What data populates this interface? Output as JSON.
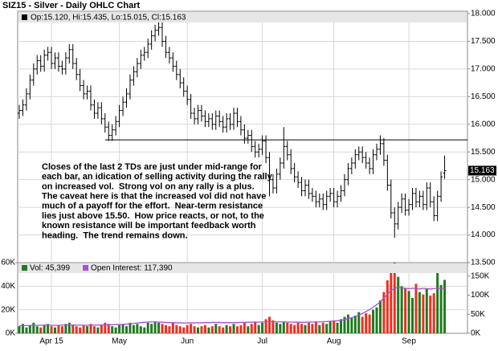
{
  "chart_data": [
    {
      "type": "ohlc",
      "title": "SIZ15 - Silver - Daily OHLC Chart",
      "legend_text": "Op:15.120, Hi:15.435, Lo:15.015, Cl:15.163",
      "color": "#000000",
      "open": [
        16.2,
        16.25,
        16.35,
        16.55,
        16.8,
        17.0,
        17.15,
        17.05,
        17.25,
        17.3,
        17.1,
        17.2,
        17.05,
        17.0,
        17.2,
        17.35,
        17.1,
        16.9,
        16.7,
        16.55,
        16.6,
        16.35,
        16.2,
        16.3,
        16.1,
        15.95,
        15.8,
        15.9,
        16.05,
        16.25,
        16.4,
        16.55,
        16.8,
        16.95,
        17.1,
        17.25,
        17.3,
        17.45,
        17.6,
        17.7,
        17.75,
        17.5,
        17.3,
        17.2,
        17.05,
        16.9,
        16.75,
        16.6,
        16.45,
        16.2,
        16.1,
        16.25,
        16.15,
        16.05,
        16.1,
        16.0,
        16.15,
        16.05,
        15.95,
        16.1,
        16.0,
        16.2,
        16.05,
        15.9,
        15.75,
        15.8,
        15.6,
        15.5,
        15.55,
        15.7,
        15.4,
        15.0,
        14.85,
        15.1,
        15.3,
        15.6,
        15.45,
        15.2,
        15.05,
        14.95,
        14.8,
        14.9,
        14.75,
        14.7,
        14.6,
        14.65,
        14.55,
        14.7,
        14.75,
        14.6,
        14.7,
        14.8,
        15.0,
        15.2,
        15.3,
        15.45,
        15.5,
        15.4,
        15.3,
        15.2,
        15.45,
        15.55,
        15.65,
        15.35,
        14.9,
        14.4,
        14.2,
        14.5,
        14.65,
        14.45,
        14.55,
        14.75,
        14.6,
        14.7,
        14.55,
        14.85,
        14.6,
        14.35,
        14.7,
        15.12
      ],
      "high": [
        16.35,
        16.45,
        16.65,
        16.9,
        17.1,
        17.25,
        17.25,
        17.35,
        17.4,
        17.4,
        17.3,
        17.3,
        17.15,
        17.3,
        17.45,
        17.45,
        17.2,
        17.0,
        16.8,
        16.7,
        16.7,
        16.45,
        16.4,
        16.4,
        16.2,
        16.05,
        16.0,
        16.15,
        16.35,
        16.5,
        16.65,
        16.9,
        17.05,
        17.2,
        17.35,
        17.4,
        17.55,
        17.7,
        17.8,
        17.85,
        17.85,
        17.6,
        17.4,
        17.3,
        17.15,
        17.0,
        16.85,
        16.7,
        16.55,
        16.3,
        16.35,
        16.35,
        16.25,
        16.2,
        16.2,
        16.25,
        16.25,
        16.15,
        16.2,
        16.2,
        16.3,
        16.3,
        16.15,
        16.0,
        15.9,
        15.9,
        15.7,
        15.65,
        15.8,
        15.8,
        15.5,
        15.1,
        15.2,
        15.4,
        15.95,
        15.7,
        15.55,
        15.3,
        15.15,
        15.05,
        15.0,
        15.0,
        14.85,
        14.8,
        14.75,
        14.75,
        14.8,
        14.85,
        14.85,
        14.8,
        14.9,
        15.1,
        15.3,
        15.4,
        15.55,
        15.6,
        15.6,
        15.5,
        15.4,
        15.55,
        15.65,
        15.8,
        15.75,
        15.45,
        15.0,
        14.5,
        14.6,
        14.75,
        14.75,
        14.65,
        14.85,
        14.85,
        14.8,
        14.8,
        14.95,
        14.95,
        14.7,
        14.8,
        15.15,
        15.435
      ],
      "low": [
        16.1,
        16.15,
        16.25,
        16.45,
        16.7,
        16.9,
        16.95,
        16.95,
        17.15,
        17.0,
        17.0,
        16.95,
        16.9,
        16.9,
        17.1,
        17.0,
        16.8,
        16.6,
        16.45,
        16.45,
        16.25,
        16.1,
        16.1,
        16.0,
        15.85,
        15.7,
        15.7,
        15.8,
        15.95,
        16.15,
        16.3,
        16.45,
        16.7,
        16.85,
        17.0,
        17.15,
        17.2,
        17.35,
        17.5,
        17.6,
        17.4,
        17.2,
        17.1,
        16.95,
        16.8,
        16.65,
        16.5,
        16.35,
        16.1,
        16.0,
        16.0,
        16.05,
        15.95,
        15.95,
        15.9,
        15.9,
        15.95,
        15.85,
        15.85,
        15.9,
        15.9,
        15.95,
        15.8,
        15.65,
        15.65,
        15.5,
        15.4,
        15.4,
        15.45,
        15.3,
        14.7,
        14.75,
        14.75,
        15.0,
        15.2,
        15.35,
        15.1,
        14.95,
        14.85,
        14.7,
        14.7,
        14.65,
        14.6,
        14.5,
        14.5,
        14.45,
        14.45,
        14.6,
        14.5,
        14.5,
        14.6,
        14.7,
        14.9,
        15.1,
        15.2,
        15.35,
        15.3,
        15.2,
        15.1,
        15.1,
        15.35,
        15.45,
        15.25,
        14.8,
        14.3,
        13.95,
        14.1,
        14.4,
        14.35,
        14.35,
        14.45,
        14.5,
        14.5,
        14.45,
        14.45,
        14.5,
        14.25,
        14.25,
        14.6,
        15.015
      ],
      "close": [
        16.25,
        16.35,
        16.55,
        16.8,
        17.0,
        17.15,
        17.05,
        17.25,
        17.3,
        17.1,
        17.2,
        17.05,
        17.0,
        17.2,
        17.35,
        17.1,
        16.9,
        16.7,
        16.55,
        16.6,
        16.35,
        16.2,
        16.3,
        16.1,
        15.95,
        15.8,
        15.9,
        16.05,
        16.25,
        16.4,
        16.55,
        16.8,
        16.95,
        17.1,
        17.25,
        17.3,
        17.45,
        17.6,
        17.7,
        17.75,
        17.5,
        17.3,
        17.2,
        17.05,
        16.9,
        16.75,
        16.6,
        16.45,
        16.2,
        16.1,
        16.25,
        16.15,
        16.05,
        16.1,
        16.0,
        16.15,
        16.05,
        15.95,
        16.1,
        16.0,
        16.2,
        16.05,
        15.9,
        15.75,
        15.8,
        15.6,
        15.5,
        15.55,
        15.7,
        15.4,
        15.0,
        14.85,
        15.1,
        15.3,
        15.6,
        15.45,
        15.2,
        15.05,
        14.95,
        14.8,
        14.9,
        14.75,
        14.7,
        14.6,
        14.65,
        14.55,
        14.7,
        14.75,
        14.6,
        14.7,
        14.8,
        15.0,
        15.2,
        15.3,
        15.45,
        15.5,
        15.4,
        15.3,
        15.2,
        15.45,
        15.55,
        15.65,
        15.35,
        14.9,
        14.4,
        14.2,
        14.5,
        14.65,
        14.45,
        14.55,
        14.75,
        14.6,
        14.7,
        14.55,
        14.85,
        14.6,
        14.35,
        14.7,
        15.05,
        15.163
      ],
      "ylim": [
        13.5,
        18
      ],
      "yticks": [
        {
          "value": 13.5,
          "label": "13.500"
        },
        {
          "value": 14,
          "label": "14.000"
        },
        {
          "value": 14.5,
          "label": "14.500"
        },
        {
          "value": 15,
          "label": "15.000"
        },
        {
          "value": 15.5,
          "label": "15.500"
        },
        {
          "value": 16,
          "label": "16.000"
        },
        {
          "value": 16.5,
          "label": "16.500"
        },
        {
          "value": 17,
          "label": "17.000"
        },
        {
          "value": 17.5,
          "label": "17.500"
        },
        {
          "value": 18,
          "label": "18.000"
        }
      ],
      "grid": true,
      "resistance": {
        "y": 15.72,
        "x_start": 24
      },
      "annotation": [
        "Closes of the last 2 TDs are just under mid-range for",
        "each bar, an idication of selling activity during the rally",
        "on increased vol.  Strong vol on any rally is a plus.",
        "The caveat here is that the increased vol did not have",
        "much of a payoff for the effort.  Near-term resistance",
        "lies just above 15.50.  How price reacts, or not, to the",
        "known resistance will be important feedback worth",
        "heading.  The trend remains down."
      ]
    },
    {
      "type": "bar",
      "categories": [
        null,
        null,
        null,
        null,
        null,
        null,
        null,
        null,
        null,
        "Apr 15",
        null,
        null,
        null,
        null,
        null,
        null,
        null,
        null,
        null,
        null,
        null,
        null,
        null,
        null,
        null,
        null,
        null,
        null,
        "May",
        null,
        null,
        null,
        null,
        null,
        null,
        null,
        null,
        null,
        null,
        null,
        null,
        null,
        null,
        null,
        null,
        null,
        null,
        "Jun",
        null,
        null,
        null,
        null,
        null,
        null,
        null,
        null,
        null,
        null,
        null,
        null,
        null,
        null,
        null,
        null,
        null,
        null,
        null,
        null,
        "Jul",
        null,
        null,
        null,
        null,
        null,
        null,
        null,
        null,
        null,
        null,
        null,
        null,
        null,
        null,
        null,
        null,
        null,
        null,
        null,
        "Aug",
        null,
        null,
        null,
        null,
        null,
        null,
        null,
        null,
        null,
        null,
        null,
        null,
        null,
        null,
        null,
        null,
        null,
        null,
        null,
        null,
        "Sep",
        null,
        null,
        null,
        null,
        null,
        null,
        null,
        null,
        null,
        null
      ],
      "series": [
        {
          "name": "Vol: 45,399",
          "up_color": "#1e7b1e",
          "down_color": "#e8321e",
          "values": [
            6000,
            8000,
            5000,
            7000,
            9000,
            6000,
            5000,
            7000,
            8000,
            6000,
            5000,
            7000,
            6000,
            8000,
            9000,
            7000,
            6000,
            5000,
            7000,
            6000,
            8000,
            6000,
            5000,
            7000,
            9000,
            8000,
            6000,
            5000,
            7000,
            8000,
            6000,
            9000,
            7000,
            8000,
            6000,
            5000,
            9000,
            8000,
            10000,
            9000,
            8000,
            7000,
            6000,
            9000,
            7000,
            6000,
            5000,
            7000,
            8000,
            6000,
            5000,
            6000,
            7000,
            5000,
            6000,
            8000,
            6000,
            5000,
            7000,
            6000,
            8000,
            6000,
            7000,
            9000,
            6000,
            8000,
            10000,
            7000,
            9000,
            12000,
            14000,
            11000,
            9000,
            8000,
            10000,
            9000,
            8000,
            7000,
            9000,
            8000,
            7000,
            9000,
            8000,
            10000,
            7000,
            9000,
            8000,
            10000,
            11000,
            9000,
            12000,
            14000,
            16000,
            13000,
            15000,
            18000,
            14000,
            17000,
            16000,
            20000,
            22000,
            28000,
            35000,
            45000,
            58000,
            60000,
            48000,
            40000,
            38000,
            36000,
            30000,
            42000,
            35000,
            33000,
            38000,
            32000,
            34000,
            52000,
            41000,
            45399
          ]
        },
        {
          "name": "Open Interest: 117,390",
          "color": "#a64ee0",
          "axis": "y2",
          "values": [
            20000,
            20000,
            20500,
            20500,
            21000,
            21000,
            21000,
            21500,
            21500,
            21000,
            21000,
            21000,
            21500,
            21500,
            22000,
            22000,
            21500,
            21500,
            21000,
            21000,
            21000,
            21500,
            21500,
            22000,
            22000,
            22500,
            22500,
            23000,
            23000,
            23500,
            24000,
            25000,
            26000,
            27000,
            28000,
            29000,
            29500,
            30000,
            30000,
            29500,
            29000,
            28500,
            28000,
            28000,
            27500,
            27500,
            27000,
            27000,
            27500,
            27500,
            27500,
            28000,
            28000,
            28000,
            28500,
            28500,
            28500,
            28000,
            28000,
            28000,
            28000,
            28000,
            28500,
            28500,
            29000,
            29000,
            29500,
            29500,
            30000,
            30000,
            30500,
            30500,
            30000,
            30000,
            30000,
            29500,
            29500,
            29500,
            29000,
            29000,
            29000,
            29500,
            29500,
            30000,
            30000,
            30500,
            31000,
            31500,
            32000,
            33000,
            34000,
            36000,
            38000,
            41000,
            44000,
            48000,
            52000,
            57000,
            62000,
            68000,
            75000,
            83000,
            92000,
            102000,
            112000,
            118000,
            120000,
            119000,
            118000,
            117000,
            118000,
            117000,
            116000,
            118000,
            117000,
            116000,
            117000,
            118000,
            117500,
            117390
          ]
        }
      ],
      "ylim": [
        0,
        60000
      ],
      "yticks": [
        {
          "value": 0,
          "label": "0K"
        },
        {
          "value": 20000,
          "label": "20K"
        },
        {
          "value": 40000,
          "label": "40K"
        },
        {
          "value": 60000,
          "label": "60K"
        }
      ],
      "y2lim": [
        0,
        185000
      ],
      "y2ticks": [
        {
          "value": 0,
          "label": "0K"
        },
        {
          "value": 50000,
          "label": "50K"
        },
        {
          "value": 100000,
          "label": "100K"
        },
        {
          "value": 150000,
          "label": "150K"
        }
      ],
      "grid": true
    }
  ]
}
